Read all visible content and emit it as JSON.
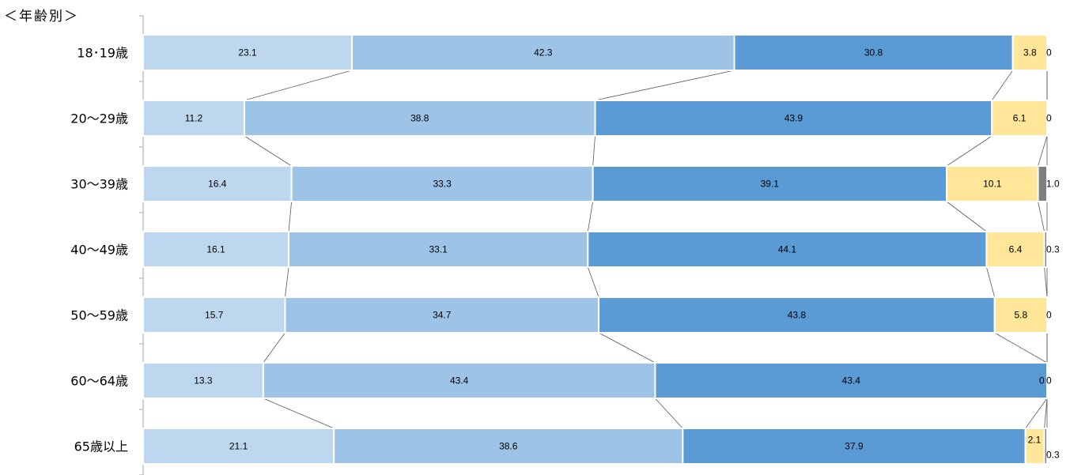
{
  "chart_data": {
    "type": "bar",
    "orientation": "horizontal",
    "stacked": true,
    "normalized": true,
    "title": "＜年齢別＞",
    "categories": [
      "18･19歳",
      "20～29歳",
      "30～39歳",
      "40～49歳",
      "50～59歳",
      "60～64歳",
      "65歳以上"
    ],
    "series": [
      {
        "color": "#bdd7ee",
        "values": [
          23.1,
          11.2,
          16.4,
          16.1,
          15.7,
          13.3,
          21.1
        ]
      },
      {
        "color": "#9dc3e6",
        "values": [
          42.3,
          38.8,
          33.3,
          33.1,
          34.7,
          43.4,
          38.6
        ]
      },
      {
        "color": "#5b9bd5",
        "values": [
          30.8,
          43.9,
          39.1,
          44.1,
          43.8,
          43.4,
          37.9
        ]
      },
      {
        "color": "#ffe699",
        "values": [
          3.8,
          6.1,
          10.1,
          6.4,
          5.8,
          0,
          2.1
        ]
      },
      {
        "color": "#7f7f7f",
        "values": [
          0,
          0,
          1.0,
          0.3,
          0,
          0,
          0.3
        ]
      }
    ],
    "value_labels": [
      [
        "23.1",
        "42.3",
        "30.8",
        "3.8",
        "0"
      ],
      [
        "11.2",
        "38.8",
        "43.9",
        "6.1",
        "0"
      ],
      [
        "16.4",
        "33.3",
        "39.1",
        "10.1",
        "1.0"
      ],
      [
        "16.1",
        "33.1",
        "44.1",
        "6.4",
        "0.3"
      ],
      [
        "15.7",
        "34.7",
        "43.8",
        "5.8",
        "0"
      ],
      [
        "13.3",
        "43.4",
        "43.4",
        "0",
        "0"
      ],
      [
        "21.1",
        "38.6",
        "37.9",
        "2.1",
        "0.3"
      ]
    ],
    "series_lines": true,
    "legend": "none",
    "grid": false
  }
}
